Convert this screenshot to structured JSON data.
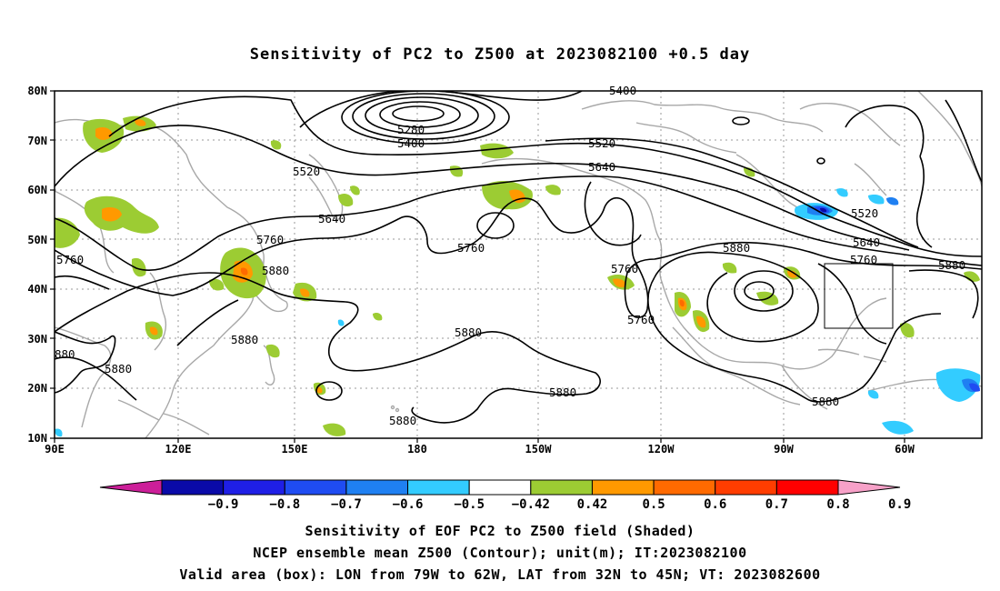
{
  "title": "Sensitivity of PC2 to Z500 at 2023082100 +0.5 day",
  "map": {
    "lat_labels": [
      "80N",
      "70N",
      "60N",
      "50N",
      "40N",
      "30N",
      "20N",
      "10N"
    ],
    "lon_labels": [
      "90E",
      "120E",
      "150E",
      "180",
      "150W",
      "120W",
      "90W",
      "60W"
    ],
    "contour_labels": [
      "5400",
      "5280",
      "5400",
      "5520",
      "5520",
      "5640",
      "5640",
      "5760",
      "5760",
      "5880",
      "5760",
      "5760",
      "5880",
      "5760",
      "5880",
      "5520",
      "5640",
      "5760",
      "5880",
      "5880",
      "5880",
      "5880",
      "5880",
      "5880",
      "880",
      "5880"
    ],
    "valid_box": {
      "lon_from": "79W",
      "lon_to": "62W",
      "lat_from": "32N",
      "lat_to": "45N"
    }
  },
  "colorbar": {
    "labels": [
      "-0.9",
      "-0.8",
      "-0.7",
      "-0.6",
      "-0.5",
      "-0.42",
      "0.42",
      "0.5",
      "0.6",
      "0.7",
      "0.8",
      "0.9"
    ],
    "colors": [
      "#cc1f99",
      "#0a0aa8",
      "#1f1fe6",
      "#1f4cf2",
      "#1f80f2",
      "#33ccff",
      "#ffffff",
      "#9ccc33",
      "#ff9900",
      "#ff6a00",
      "#ff3d00",
      "#ff0000",
      "#f7a1c8"
    ]
  },
  "captions": [
    "Sensitivity of EOF PC2 to Z500 field (Shaded)",
    "NCEP ensemble mean Z500 (Contour); unit(m); IT:2023082100",
    "Valid area (box): LON from 79W to 62W, LAT from 32N to 45N; VT: 2023082600"
  ]
}
